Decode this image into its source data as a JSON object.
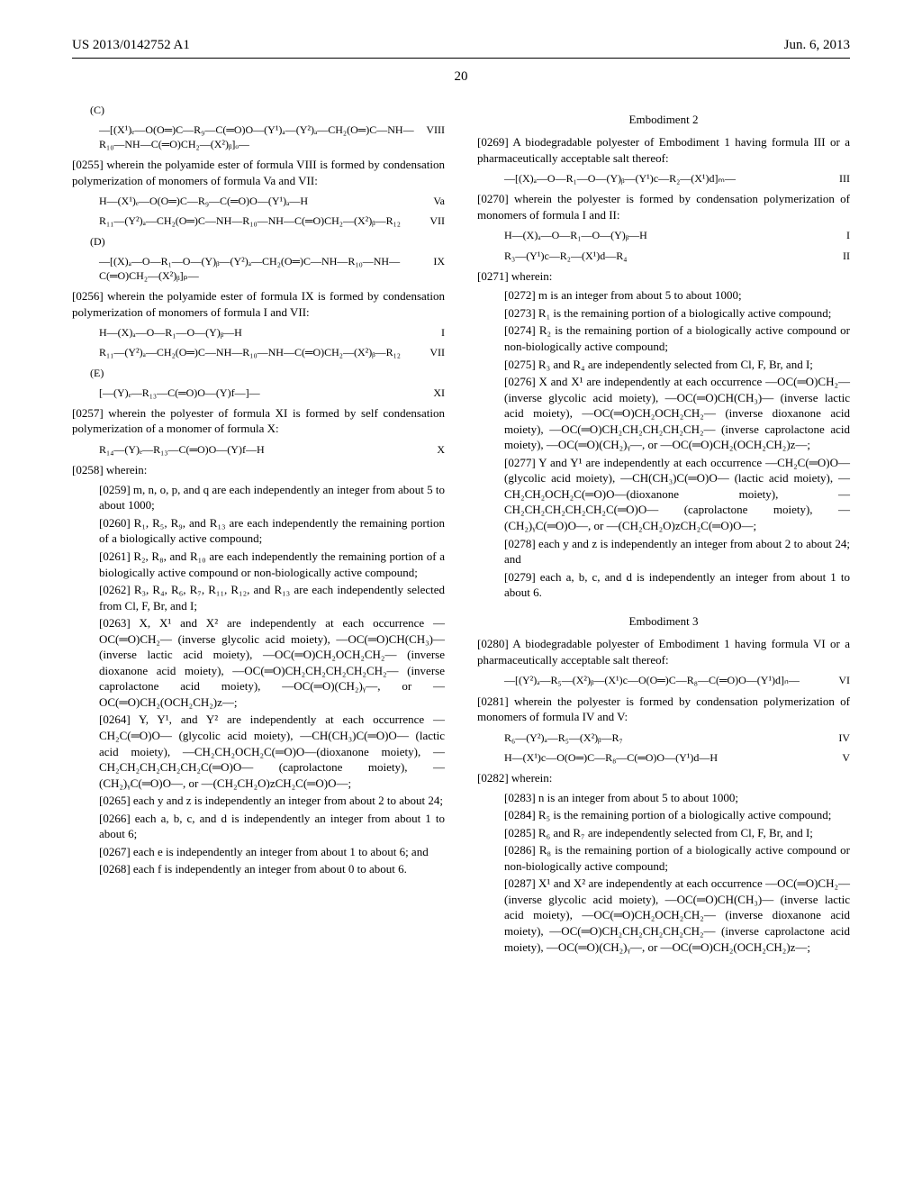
{
  "header": {
    "left": "US 2013/0142752 A1",
    "right": "Jun. 6, 2013"
  },
  "page_number": "20",
  "left_col": {
    "labelC": "(C)",
    "formulaVIII": {
      "text": "—[(X¹)ₑ—O(O═)C—R₉—C(═O)O—(Y¹)ₐ—(Y²)ₐ—CH₂(O═)C—NH—R₁₀—NH—C(═O)CH₂—(X²)ᵦ]ₒ—",
      "num": "VIII"
    },
    "p0255": "[0255]   wherein the polyamide ester of formula VIII is formed by condensation polymerization of monomers of formula Va and VII:",
    "formulaVa": {
      "text": "H—(X¹)ₑ—O(O═)C—R₉—C(═O)O—(Y¹)ₐ—H",
      "num": "Va"
    },
    "formulaVII_1": {
      "text": "R₁₁—(Y²)ₐ—CH₂(O═)C—NH—R₁₀—NH—C(═O)CH₂—(X²)ᵦ—R₁₂",
      "num": "VII"
    },
    "labelD": "(D)",
    "formulaIX": {
      "text": "—[(X)ₐ—O—R₁—O—(Y)ᵦ—(Y²)ₐ—CH₂(O═)C—NH—R₁₀—NH—C(═O)CH₂—(X²)ᵦ]ₚ—",
      "num": "IX"
    },
    "p0256": "[0256]   wherein the polyamide ester of formula IX is formed by condensation polymerization of monomers of formula I and VII:",
    "formulaI_1": {
      "text": "H—(X)ₐ—O—R₁—O—(Y)ᵦ—H",
      "num": "I"
    },
    "formulaVII_2": {
      "text": "R₁₁—(Y²)ₐ—CH₂(O═)C—NH—R₁₀—NH—C(═O)CH₂—(X²)ᵦ—R₁₂",
      "num": "VII"
    },
    "labelE": "(E)",
    "formulaXI": {
      "text": "[—(Y)ₑ—R₁₃—C(═O)O—(Y)f—]—",
      "num": "XI"
    },
    "p0257": "[0257]   wherein the polyester of formula XI is formed by self condensation polymerization of a monomer of formula X:",
    "formulaX": {
      "text": "R₁₄—(Y)ₑ—R₁₃—C(═O)O—(Y)f—H",
      "num": "X"
    },
    "p0258": "[0258]   wherein:",
    "p0259": "[0259]   m, n, o, p, and q are each independently an integer from about 5 to about 1000;",
    "p0260": "[0260]   R₁, R₅, R₉, and R₁₃ are each independently the remaining portion of a biologically active compound;",
    "p0261": "[0261]   R₂, R₈, and R₁₀ are each independently the remaining portion of a biologically active compound or non-biologically active compound;",
    "p0262": "[0262]   R₃, R₄, R₆, R₇, R₁₁, R₁₂, and R₁₃ are each independently selected from Cl, F, Br, and I;",
    "p0263": "[0263]   X, X¹ and X² are independently at each occurrence —OC(═O)CH₂— (inverse glycolic acid moiety), —OC(═O)CH(CH₃)— (inverse lactic acid moiety), —OC(═O)CH₂OCH₂CH₂— (inverse dioxanone acid moiety), —OC(═O)CH₂CH₂CH₂CH₂CH₂— (inverse caprolactone acid moiety), —OC(═O)(CH₂)ᵧ—, or —OC(═O)CH₂(OCH₂CH₂)z—;",
    "p0264": "[0264]   Y, Y¹, and Y² are independently at each occurrence —CH₂C(═O)O— (glycolic acid moiety), —CH(CH₃)C(═O)O— (lactic acid moiety), —CH₂CH₂OCH₂C(═O)O—(dioxanone moiety), —CH₂CH₂CH₂CH₂CH₂C(═O)O— (caprolactone moiety), —(CH₂)ᵧC(═O)O—, or —(CH₂CH₂O)zCH₂C(═O)O—;",
    "p0265": "[0265]   each y and z is independently an integer from about 2 to about 24;",
    "p0266": "[0266]   each a, b, c, and d is independently an integer from about 1 to about 6;",
    "p0267": "[0267]   each e is independently an integer from about 1 to about 6; and",
    "p0268": "[0268]   each f is independently an integer from about 0 to about 6."
  },
  "right_col": {
    "emb2": "Embodiment 2",
    "p0269": "[0269]   A biodegradable polyester of Embodiment 1 having formula III or a pharmaceutically acceptable salt thereof:",
    "formulaIII": {
      "text": "—[(X)ₐ—O—R₁—O—(Y)ᵦ—(Y¹)c—R₂—(X¹)d]ₘ—",
      "num": "III"
    },
    "p0270": "[0270]   wherein the polyester is formed by condensation polymerization of monomers of formula I and II:",
    "formulaI_2": {
      "text": "H—(X)ₐ—O—R₁—O—(Y)ᵦ—H",
      "num": "I"
    },
    "formulaII": {
      "text": "R₃—(Y¹)c—R₂—(X¹)d—R₄",
      "num": "II"
    },
    "p0271": "[0271]   wherein:",
    "p0272": "[0272]   m is an integer from about 5 to about 1000;",
    "p0273": "[0273]   R₁ is the remaining portion of a biologically active compound;",
    "p0274": "[0274]   R₂ is the remaining portion of a biologically active compound or non-biologically active compound;",
    "p0275": "[0275]   R₃ and R₄ are independently selected from Cl, F, Br, and I;",
    "p0276": "[0276]   X and X¹ are independently at each occurrence —OC(═O)CH₂— (inverse glycolic acid moiety), —OC(═O)CH(CH₃)— (inverse lactic acid moiety), —OC(═O)CH₂OCH₂CH₂— (inverse dioxanone acid moiety), —OC(═O)CH₂CH₂CH₂CH₂CH₂— (inverse caprolactone acid moiety), —OC(═O)(CH₂)ᵧ—, or —OC(═O)CH₂(OCH₂CH₂)z—;",
    "p0277": "[0277]   Y and Y¹ are independently at each occurrence —CH₂C(═O)O— (glycolic acid moiety), —CH(CH₃)C(═O)O— (lactic acid moiety), —CH₂CH₂OCH₂C(═O)O—(dioxanone moiety), —CH₂CH₂CH₂CH₂CH₂C(═O)O— (caprolactone moiety), —(CH₂)ᵧC(═O)O—, or —(CH₂CH₂O)zCH₂C(═O)O—;",
    "p0278": "[0278]   each y and z is independently an integer from about 2 to about 24; and",
    "p0279": "[0279]   each a, b, c, and d is independently an integer from about 1 to about 6.",
    "emb3": "Embodiment 3",
    "p0280": "[0280]   A biodegradable polyester of Embodiment 1 having formula VI or a pharmaceutically acceptable salt thereof:",
    "formulaVI": {
      "text": "—[(Y²)ₐ—R₅—(X²)ᵦ—(X¹)c—O(O═)C—R₈—C(═O)O—(Y¹)d]ₙ—",
      "num": "VI"
    },
    "p0281": "[0281]   wherein the polyester is formed by condensation polymerization of monomers of formula IV and V:",
    "formulaIV": {
      "text": "R₆—(Y²)ₐ—R₅—(X²)ᵦ—R₇",
      "num": "IV"
    },
    "formulaV": {
      "text": "H—(X¹)c—O(O═)C—R₈—C(═O)O—(Y¹)d—H",
      "num": "V"
    },
    "p0282": "[0282]   wherein:",
    "p0283": "[0283]   n is an integer from about 5 to about 1000;",
    "p0284": "[0284]   R₅ is the remaining portion of a biologically active compound;",
    "p0285": "[0285]   R₆ and R₇ are independently selected from Cl, F, Br, and I;",
    "p0286": "[0286]   R₈ is the remaining portion of a biologically active compound or non-biologically active compound;",
    "p0287": "[0287]   X¹ and X² are independently at each occurrence —OC(═O)CH₂— (inverse glycolic acid moiety), —OC(═O)CH(CH₃)— (inverse lactic acid moiety), —OC(═O)CH₂OCH₂CH₂— (inverse dioxanone acid moiety), —OC(═O)CH₂CH₂CH₂CH₂CH₂— (inverse caprolactone acid moiety), —OC(═O)(CH₂)ᵧ—, or —OC(═O)CH₂(OCH₂CH₂)z—;"
  }
}
